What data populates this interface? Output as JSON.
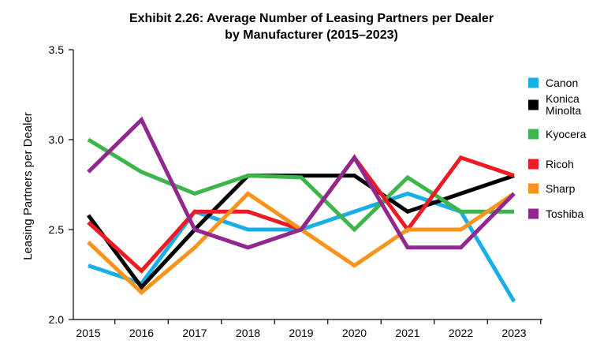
{
  "chart_data": {
    "type": "line",
    "title": [
      "Exhibit 2.26: Average Number of Leasing Partners per Dealer",
      "by Manufacturer (2015–2023)"
    ],
    "xlabel": "",
    "ylabel": "Leasing Partners per Dealer",
    "categories": [
      "2015",
      "2016",
      "2017",
      "2018",
      "2019",
      "2020",
      "2021",
      "2022",
      "2023"
    ],
    "ylim": [
      2.0,
      3.5
    ],
    "yticks": [
      "2.0",
      "2.5",
      "3.0",
      "3.5"
    ],
    "legend_position": "right",
    "series": [
      {
        "name": "Canon",
        "color": "#1aaee6",
        "values": [
          2.3,
          2.2,
          2.6,
          2.5,
          2.5,
          2.6,
          2.7,
          2.6,
          2.1
        ]
      },
      {
        "name": "Konica\nMinolta",
        "color": "#000000",
        "values": [
          2.58,
          2.18,
          2.5,
          2.8,
          2.8,
          2.8,
          2.6,
          2.7,
          2.8
        ]
      },
      {
        "name": "Kyocera",
        "color": "#3db54a",
        "values": [
          3.0,
          2.82,
          2.7,
          2.8,
          2.79,
          2.5,
          2.79,
          2.6,
          2.6
        ]
      },
      {
        "name": "Ricoh",
        "color": "#ed1c24",
        "values": [
          2.54,
          2.27,
          2.6,
          2.6,
          2.5,
          2.9,
          2.5,
          2.9,
          2.8
        ]
      },
      {
        "name": "Sharp",
        "color": "#f7941d",
        "values": [
          2.43,
          2.15,
          2.4,
          2.7,
          2.5,
          2.3,
          2.5,
          2.5,
          2.7
        ]
      },
      {
        "name": "Toshiba",
        "color": "#92278f",
        "values": [
          2.82,
          3.11,
          2.5,
          2.4,
          2.5,
          2.9,
          2.4,
          2.4,
          2.7
        ]
      }
    ]
  }
}
